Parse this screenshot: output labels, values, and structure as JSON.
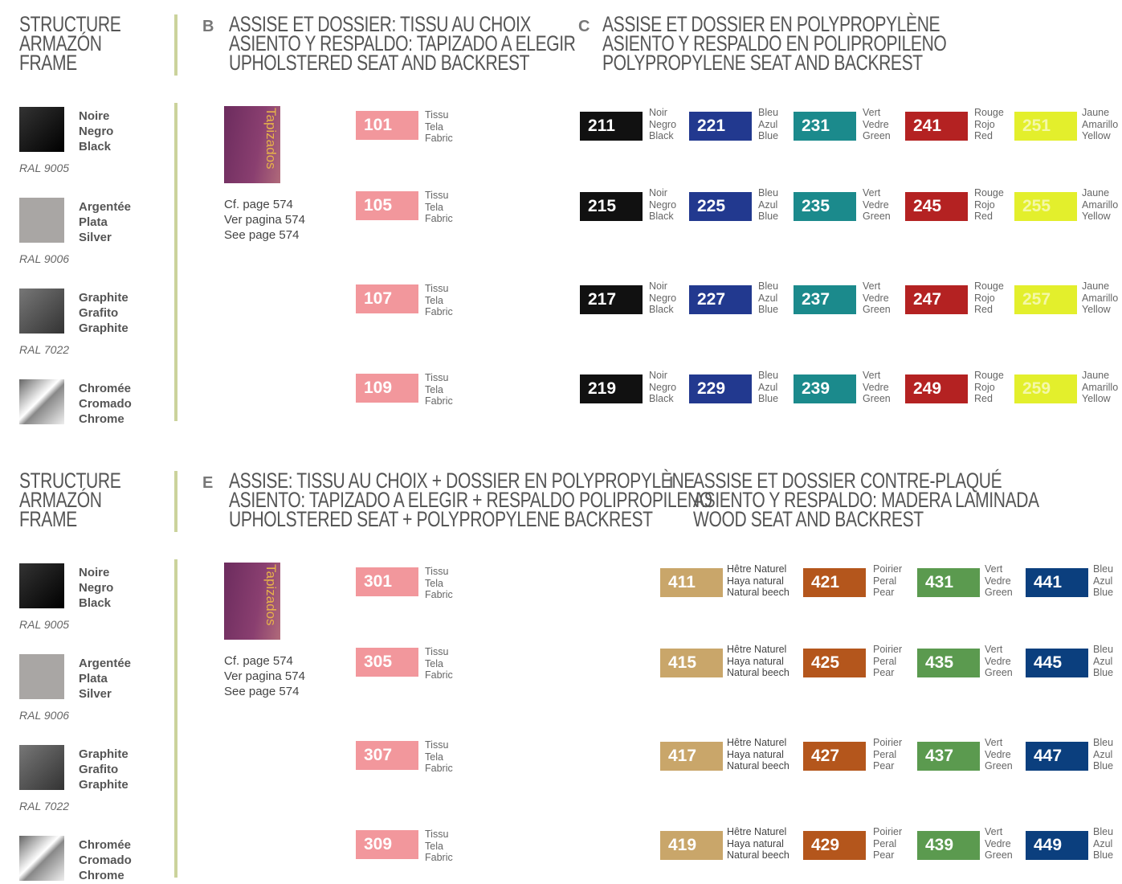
{
  "blocks": [
    {
      "structure": {
        "title": [
          "STRUCTURE",
          "ARMAZÓN",
          "FRAME"
        ],
        "finishes": [
          {
            "name": [
              "Noire",
              "Negro",
              "Black"
            ],
            "ral": "RAL 9005"
          },
          {
            "name": [
              "Argentée",
              "Plata",
              "Silver"
            ],
            "ral": "RAL 9006"
          },
          {
            "name": [
              "Graphite",
              "Grafito",
              "Graphite"
            ],
            "ral": "RAL 7022"
          },
          {
            "name": [
              "Chromée",
              "Cromado",
              "Chrome"
            ]
          }
        ]
      },
      "left": {
        "letter": "B",
        "title": [
          "ASSISE ET DOSSIER: TISSU AU CHOIX",
          "ASIENTO Y RESPALDO: TAPIZADO A ELEGIR",
          "UPHOLSTERED SEAT AND BACKREST"
        ],
        "swatch_label": "Tapizados",
        "reference": [
          "Cf. page 574",
          "Ver pagina 574",
          "See page 574"
        ],
        "fabric_label": [
          "Tissu",
          "Tela",
          "Fabric"
        ],
        "codes": [
          "101",
          "105",
          "107",
          "109"
        ]
      },
      "right": {
        "letter": "C",
        "title": [
          "ASSISE ET DOSSIER EN POLYPROPYLÈNE",
          "ASIENTO Y RESPALDO EN POLIPROPILENO",
          "POLYPROPYLENE SEAT AND BACKREST"
        ],
        "columns": [
          {
            "label": [
              "Noir",
              "Negro",
              "Black"
            ],
            "color": "#111111",
            "codes": [
              "211",
              "215",
              "217",
              "219"
            ]
          },
          {
            "label": [
              "Bleu",
              "Azul",
              "Blue"
            ],
            "color": "#22398f",
            "codes": [
              "221",
              "225",
              "227",
              "229"
            ]
          },
          {
            "label": [
              "Vert",
              "Vedre",
              "Green"
            ],
            "color": "#1b8a8c",
            "codes": [
              "231",
              "235",
              "237",
              "239"
            ]
          },
          {
            "label": [
              "Rouge",
              "Rojo",
              "Red"
            ],
            "color": "#b42222",
            "codes": [
              "241",
              "245",
              "247",
              "249"
            ]
          },
          {
            "label": [
              "Jaune",
              "Amarillo",
              "Yellow"
            ],
            "color": "#e3ef2c",
            "codes": [
              "251",
              "255",
              "257",
              "259"
            ]
          }
        ]
      }
    },
    {
      "structure": {
        "title": [
          "STRUCTURE",
          "ARMAZÓN",
          "FRAME"
        ],
        "finishes": [
          {
            "name": [
              "Noire",
              "Negro",
              "Black"
            ],
            "ral": "RAL 9005"
          },
          {
            "name": [
              "Argentée",
              "Plata",
              "Silver"
            ],
            "ral": "RAL 9006"
          },
          {
            "name": [
              "Graphite",
              "Grafito",
              "Graphite"
            ],
            "ral": "RAL 7022"
          },
          {
            "name": [
              "Chromée",
              "Cromado",
              "Chrome"
            ]
          }
        ]
      },
      "left": {
        "letter": "E",
        "title": [
          "ASSISE: TISSU AU CHOIX + DOSSIER EN POLYPROPYLÈNE",
          "ASIENTO: TAPIZADO A ELEGIR + RESPALDO POLIPROPILENO",
          "UPHOLSTERED SEAT + POLYPROPYLENE BACKREST"
        ],
        "swatch_label": "Tapizados",
        "reference": [
          "Cf. page 574",
          "Ver pagina 574",
          "See page 574"
        ],
        "fabric_label": [
          "Tissu",
          "Tela",
          "Fabric"
        ],
        "codes": [
          "301",
          "305",
          "307",
          "309"
        ]
      },
      "right": {
        "letter": "I",
        "title": [
          "ASSISE ET DOSSIER CONTRE-PLAQUÉ",
          "ASIENTO Y RESPALDO: MADERA LAMINADA",
          "WOOD SEAT AND BACKREST"
        ],
        "columns": [
          {
            "label": [
              "Hêtre Naturel",
              "Haya natural",
              "Natural beech"
            ],
            "color": "#c9a66a",
            "codes": [
              "411",
              "415",
              "417",
              "419"
            ]
          },
          {
            "label": [
              "Poirier",
              "Peral",
              "Pear"
            ],
            "color": "#b4561c",
            "codes": [
              "421",
              "425",
              "427",
              "429"
            ]
          },
          {
            "label": [
              "Vert",
              "Vedre",
              "Green"
            ],
            "color": "#5b9a4f",
            "codes": [
              "431",
              "435",
              "437",
              "439"
            ]
          },
          {
            "label": [
              "Bleu",
              "Azul",
              "Blue"
            ],
            "color": "#0b3f7e",
            "codes": [
              "441",
              "445",
              "447",
              "449"
            ]
          }
        ]
      }
    }
  ]
}
